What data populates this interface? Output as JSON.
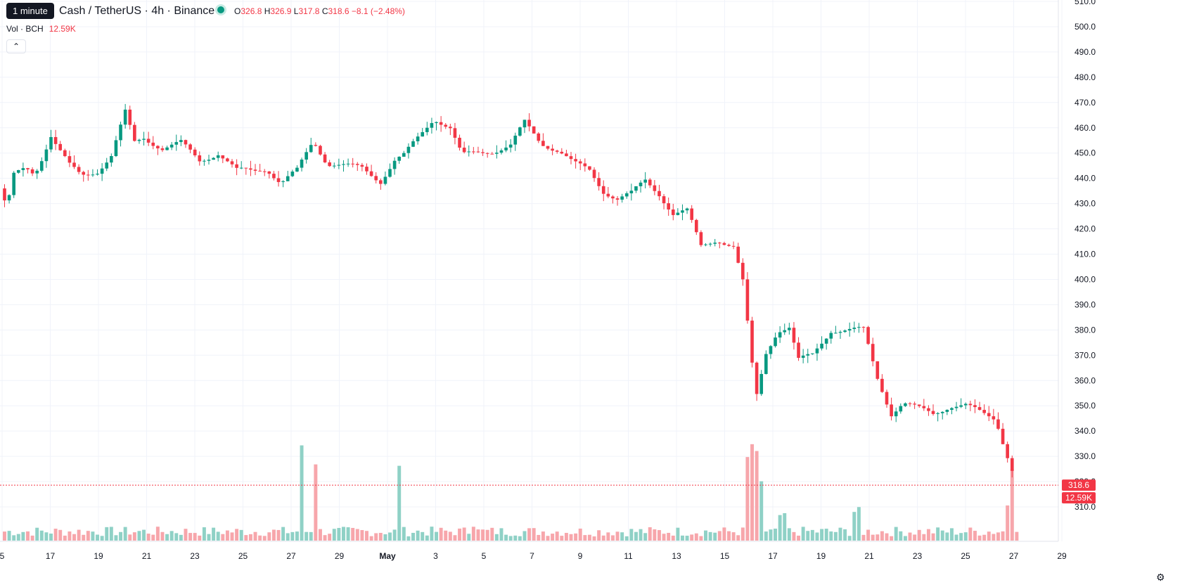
{
  "header": {
    "tooltip": "1 minute",
    "symbol": "Cash / TetherUS · 4h · Binance",
    "ohlc": {
      "o_label": "O",
      "o": "326.8",
      "h_label": "H",
      "h": "326.9",
      "l_label": "L",
      "l": "317.8",
      "c_label": "C",
      "c": "318.6",
      "change": "−8.1 (−2.48%)"
    },
    "volume_label": "Vol · BCH",
    "volume_value": "12.59K",
    "collapse_icon": "chevron-up-icon",
    "settings_icon": "gear-icon"
  },
  "colors": {
    "up": "#089981",
    "down": "#f23645",
    "vol_up": "#8fd1c6",
    "vol_down": "#f7a6ab",
    "grid": "#f0f3fa"
  },
  "chart_data": {
    "type": "candlestick",
    "y_ticks": [
      310,
      320,
      330,
      340,
      350,
      360,
      370,
      380,
      390,
      400,
      410,
      420,
      430,
      440,
      450,
      460,
      470,
      480,
      490,
      500,
      510
    ],
    "y_tick_labels": [
      "310.0",
      "320.0",
      "330.0",
      "340.0",
      "350.0",
      "360.0",
      "370.0",
      "380.0",
      "390.0",
      "400.0",
      "410.0",
      "420.0",
      "430.0",
      "440.0",
      "450.0",
      "460.0",
      "470.0",
      "480.0",
      "490.0",
      "500.0",
      "510.0"
    ],
    "x_tick_labels": [
      "5",
      "17",
      "19",
      "21",
      "23",
      "25",
      "27",
      "29",
      "May",
      "3",
      "5",
      "7",
      "9",
      "11",
      "13",
      "15",
      "17",
      "19",
      "21",
      "23",
      "25",
      "27",
      "29"
    ],
    "price_anchors": [
      [
        0,
        436
      ],
      [
        6,
        428
      ],
      [
        12,
        441
      ],
      [
        22,
        444
      ],
      [
        30,
        442
      ],
      [
        36,
        448
      ],
      [
        44,
        457
      ],
      [
        50,
        452
      ],
      [
        60,
        445
      ],
      [
        70,
        441
      ],
      [
        84,
        443
      ],
      [
        96,
        449
      ],
      [
        108,
        466
      ],
      [
        116,
        454
      ],
      [
        124,
        456
      ],
      [
        140,
        452
      ],
      [
        156,
        454
      ],
      [
        172,
        447
      ],
      [
        188,
        450
      ],
      [
        204,
        443
      ],
      [
        218,
        443
      ],
      [
        230,
        444
      ],
      [
        242,
        438
      ],
      [
        256,
        443
      ],
      [
        270,
        455
      ],
      [
        282,
        446
      ],
      [
        296,
        445
      ],
      [
        312,
        444
      ],
      [
        328,
        439
      ],
      [
        340,
        447
      ],
      [
        348,
        449
      ],
      [
        362,
        457
      ],
      [
        374,
        464
      ],
      [
        388,
        460
      ],
      [
        398,
        449
      ],
      [
        410,
        450
      ],
      [
        426,
        451
      ],
      [
        440,
        453
      ],
      [
        452,
        462
      ],
      [
        466,
        454
      ],
      [
        482,
        451
      ],
      [
        494,
        446
      ],
      [
        508,
        443
      ],
      [
        520,
        435
      ],
      [
        532,
        432
      ],
      [
        544,
        434
      ],
      [
        556,
        439
      ],
      [
        568,
        434
      ],
      [
        580,
        426
      ],
      [
        592,
        427
      ],
      [
        604,
        413
      ],
      [
        618,
        416
      ],
      [
        632,
        413
      ],
      [
        640,
        399
      ],
      [
        648,
        366
      ],
      [
        652,
        354
      ],
      [
        660,
        371
      ],
      [
        670,
        380
      ],
      [
        680,
        381
      ],
      [
        688,
        368
      ],
      [
        700,
        370
      ],
      [
        716,
        380
      ],
      [
        732,
        380
      ],
      [
        744,
        380
      ],
      [
        756,
        361
      ],
      [
        768,
        347
      ],
      [
        778,
        351
      ],
      [
        790,
        349
      ],
      [
        804,
        347
      ],
      [
        818,
        350
      ],
      [
        832,
        350
      ],
      [
        846,
        347
      ],
      [
        858,
        345
      ],
      [
        866,
        333
      ],
      [
        874,
        322
      ]
    ],
    "last_price": "318.6",
    "last_volume": "12.59K"
  }
}
